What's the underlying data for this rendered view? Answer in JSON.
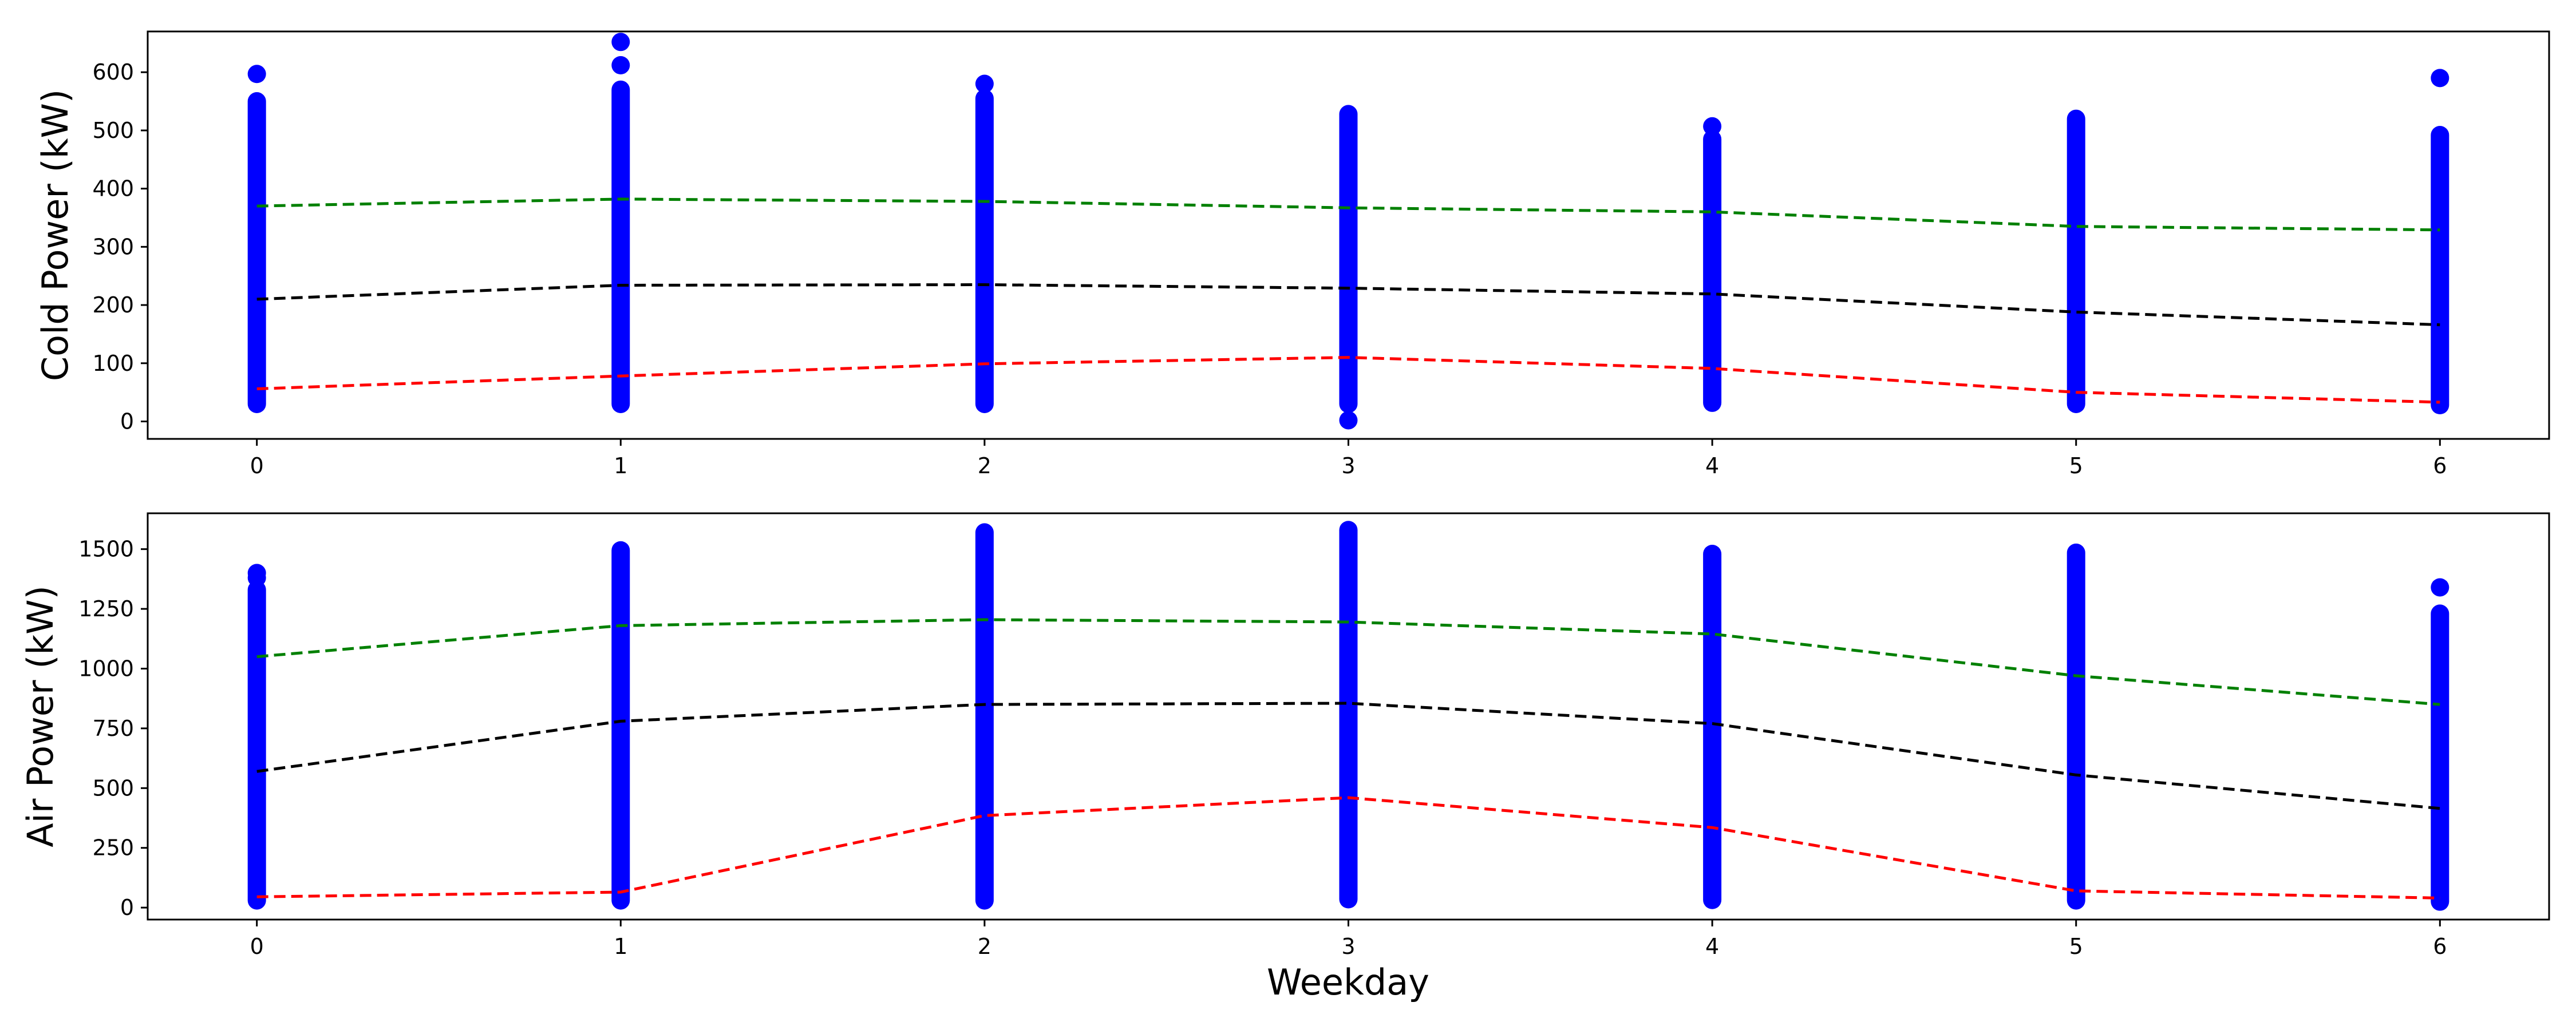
{
  "chart_data": [
    {
      "type": "scatter",
      "title": "",
      "xlabel": "",
      "ylabel": "Cold Power (kW)",
      "xlim": [
        -0.3,
        6.3
      ],
      "ylim": [
        -30,
        670
      ],
      "xticks": [
        0,
        1,
        2,
        3,
        4,
        5,
        6
      ],
      "xtick_labels": [
        "0",
        "1",
        "2",
        "3",
        "4",
        "5",
        "6"
      ],
      "yticks": [
        0,
        100,
        200,
        300,
        400,
        500,
        600
      ],
      "ytick_labels": [
        "0",
        "100",
        "200",
        "300",
        "400",
        "500",
        "600"
      ],
      "grid": false,
      "scatter_color": "#0000ff",
      "scatter_ranges": [
        {
          "x": 0,
          "min": 30,
          "max": 550,
          "outliers": [
            597
          ]
        },
        {
          "x": 1,
          "min": 30,
          "max": 570,
          "outliers": [
            612,
            652
          ]
        },
        {
          "x": 2,
          "min": 30,
          "max": 555,
          "outliers": [
            580
          ]
        },
        {
          "x": 3,
          "min": 30,
          "max": 528,
          "outliers": [
            2
          ]
        },
        {
          "x": 4,
          "min": 32,
          "max": 485,
          "outliers": [
            507
          ]
        },
        {
          "x": 5,
          "min": 30,
          "max": 520,
          "outliers": []
        },
        {
          "x": 6,
          "min": 28,
          "max": 492,
          "outliers": [
            590
          ]
        }
      ],
      "series": [
        {
          "color": "#008000",
          "style": "dashed",
          "x": [
            0,
            1,
            2,
            3,
            4,
            5,
            6
          ],
          "values": [
            370,
            382,
            378,
            367,
            360,
            335,
            329
          ]
        },
        {
          "color": "#000000",
          "style": "dashed",
          "x": [
            0,
            1,
            2,
            3,
            4,
            5,
            6
          ],
          "values": [
            210,
            234,
            235,
            229,
            219,
            188,
            166
          ]
        },
        {
          "color": "#ff0000",
          "style": "dashed",
          "x": [
            0,
            1,
            2,
            3,
            4,
            5,
            6
          ],
          "values": [
            56,
            78,
            99,
            110,
            91,
            50,
            33
          ]
        }
      ]
    },
    {
      "type": "scatter",
      "title": "",
      "xlabel": "Weekday",
      "ylabel": "Air Power (kW)",
      "xlim": [
        -0.3,
        6.3
      ],
      "ylim": [
        -50,
        1650
      ],
      "xticks": [
        0,
        1,
        2,
        3,
        4,
        5,
        6
      ],
      "xtick_labels": [
        "0",
        "1",
        "2",
        "3",
        "4",
        "5",
        "6"
      ],
      "yticks": [
        0,
        250,
        500,
        750,
        1000,
        1250,
        1500
      ],
      "ytick_labels": [
        "0",
        "250",
        "500",
        "750",
        "1000",
        "1250",
        "1500"
      ],
      "grid": false,
      "scatter_color": "#0000ff",
      "scatter_ranges": [
        {
          "x": 0,
          "min": 30,
          "max": 1330,
          "outliers": [
            1380,
            1400
          ]
        },
        {
          "x": 1,
          "min": 30,
          "max": 1495,
          "outliers": []
        },
        {
          "x": 2,
          "min": 30,
          "max": 1570,
          "outliers": []
        },
        {
          "x": 3,
          "min": 35,
          "max": 1580,
          "outliers": []
        },
        {
          "x": 4,
          "min": 32,
          "max": 1480,
          "outliers": []
        },
        {
          "x": 5,
          "min": 30,
          "max": 1485,
          "outliers": []
        },
        {
          "x": 6,
          "min": 25,
          "max": 1230,
          "outliers": [
            1340
          ]
        }
      ],
      "series": [
        {
          "color": "#008000",
          "style": "dashed",
          "x": [
            0,
            1,
            2,
            3,
            4,
            5,
            6
          ],
          "values": [
            1050,
            1180,
            1205,
            1195,
            1145,
            970,
            850
          ]
        },
        {
          "color": "#000000",
          "style": "dashed",
          "x": [
            0,
            1,
            2,
            3,
            4,
            5,
            6
          ],
          "values": [
            570,
            780,
            850,
            855,
            770,
            555,
            415
          ]
        },
        {
          "color": "#ff0000",
          "style": "dashed",
          "x": [
            0,
            1,
            2,
            3,
            4,
            5,
            6
          ],
          "values": [
            45,
            65,
            385,
            460,
            335,
            70,
            40
          ]
        }
      ]
    }
  ]
}
